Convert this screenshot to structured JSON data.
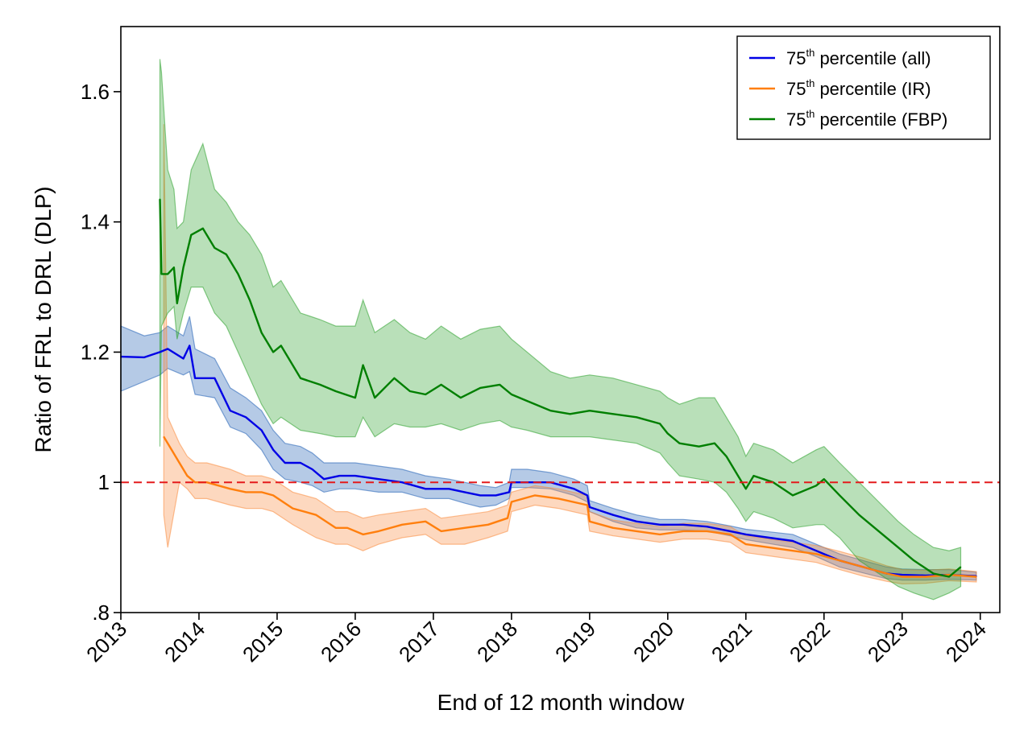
{
  "chart_data": {
    "type": "line",
    "title": "",
    "xlabel": "End of 12 month window",
    "ylabel": "Ratio of FRL to DRL (DLP)",
    "xlim": [
      2013.0,
      2024.25
    ],
    "ylim": [
      0.8,
      1.7
    ],
    "x_ticks": [
      2013,
      2014,
      2015,
      2016,
      2017,
      2018,
      2019,
      2020,
      2021,
      2022,
      2023,
      2024
    ],
    "x_tick_labels": [
      "2013",
      "2014",
      "2015",
      "2016",
      "2017",
      "2018",
      "2019",
      "2020",
      "2021",
      "2022",
      "2023",
      "2024"
    ],
    "y_ticks": [
      0.8,
      1.0,
      1.2,
      1.4,
      1.6
    ],
    "y_tick_labels": [
      ".8",
      "1",
      "1.2",
      "1.4",
      "1.6"
    ],
    "reference_line": {
      "y": 1.0,
      "color": "#e41a1c",
      "style": "dashed"
    },
    "legend": {
      "placement": "top-right",
      "entries": [
        {
          "base": "75",
          "sup": "th",
          "rest": " percentile (all)",
          "color": "#0000e6"
        },
        {
          "base": "75",
          "sup": "th",
          "rest": " percentile (IR)",
          "color": "#ff7f0e"
        },
        {
          "base": "75",
          "sup": "th",
          "rest": " percentile (FBP)",
          "color": "#007f00"
        }
      ]
    },
    "series": [
      {
        "name": "75th percentile (all)",
        "color": "#0000e6",
        "band_color": "#1f5fb4",
        "x": [
          2013.0,
          2013.3,
          2013.5,
          2013.6,
          2013.8,
          2013.88,
          2013.95,
          2014.2,
          2014.4,
          2014.6,
          2014.8,
          2014.95,
          2015.1,
          2015.3,
          2015.45,
          2015.6,
          2015.8,
          2016.0,
          2016.3,
          2016.6,
          2016.9,
          2017.2,
          2017.4,
          2017.6,
          2017.8,
          2017.97,
          2018.0,
          2018.2,
          2018.5,
          2018.8,
          2018.97,
          2019.0,
          2019.3,
          2019.6,
          2019.9,
          2020.2,
          2020.5,
          2020.8,
          2021.0,
          2021.3,
          2021.6,
          2021.9,
          2022.2,
          2022.5,
          2022.8,
          2023.0,
          2023.3,
          2023.6,
          2023.95
        ],
        "y": [
          1.193,
          1.192,
          1.2,
          1.205,
          1.19,
          1.21,
          1.16,
          1.16,
          1.11,
          1.1,
          1.08,
          1.05,
          1.03,
          1.03,
          1.02,
          1.005,
          1.01,
          1.01,
          1.005,
          1.0,
          0.99,
          0.99,
          0.985,
          0.98,
          0.98,
          0.985,
          1.0,
          1.0,
          1.0,
          0.99,
          0.98,
          0.962,
          0.95,
          0.94,
          0.935,
          0.935,
          0.932,
          0.925,
          0.92,
          0.915,
          0.91,
          0.895,
          0.88,
          0.87,
          0.86,
          0.858,
          0.857,
          0.858,
          0.856
        ],
        "lower": [
          1.14,
          1.155,
          1.165,
          1.175,
          1.165,
          1.17,
          1.135,
          1.13,
          1.085,
          1.075,
          1.05,
          1.02,
          1.005,
          1.0,
          0.995,
          0.985,
          0.99,
          0.99,
          0.985,
          0.985,
          0.975,
          0.975,
          0.968,
          0.962,
          0.965,
          0.975,
          0.992,
          0.992,
          0.99,
          0.98,
          0.97,
          0.955,
          0.94,
          0.93,
          0.927,
          0.927,
          0.925,
          0.918,
          0.912,
          0.906,
          0.9,
          0.886,
          0.87,
          0.861,
          0.852,
          0.85,
          0.85,
          0.851,
          0.85
        ],
        "upper": [
          1.24,
          1.225,
          1.23,
          1.24,
          1.225,
          1.255,
          1.205,
          1.19,
          1.145,
          1.13,
          1.11,
          1.08,
          1.06,
          1.055,
          1.045,
          1.03,
          1.03,
          1.03,
          1.025,
          1.02,
          1.01,
          1.005,
          1.0,
          0.995,
          0.992,
          1.0,
          1.02,
          1.02,
          1.015,
          1.005,
          0.995,
          0.972,
          0.96,
          0.95,
          0.943,
          0.943,
          0.94,
          0.933,
          0.928,
          0.924,
          0.92,
          0.905,
          0.89,
          0.88,
          0.87,
          0.867,
          0.866,
          0.866,
          0.862
        ]
      },
      {
        "name": "75th percentile (IR)",
        "color": "#ff7f0e",
        "band_color": "#f98a3c",
        "x": [
          2013.55,
          2013.6,
          2013.75,
          2013.85,
          2013.95,
          2014.1,
          2014.4,
          2014.6,
          2014.8,
          2014.95,
          2015.2,
          2015.5,
          2015.75,
          2015.9,
          2016.1,
          2016.3,
          2016.6,
          2016.9,
          2017.1,
          2017.4,
          2017.7,
          2017.95,
          2018.0,
          2018.3,
          2018.6,
          2018.97,
          2019.0,
          2019.3,
          2019.6,
          2019.9,
          2020.2,
          2020.5,
          2020.8,
          2021.0,
          2021.3,
          2021.6,
          2021.9,
          2022.2,
          2022.5,
          2022.8,
          2023.0,
          2023.3,
          2023.6,
          2023.95
        ],
        "y": [
          1.07,
          1.06,
          1.03,
          1.01,
          1.0,
          1.0,
          0.99,
          0.985,
          0.985,
          0.98,
          0.96,
          0.95,
          0.93,
          0.93,
          0.92,
          0.925,
          0.935,
          0.94,
          0.925,
          0.93,
          0.935,
          0.945,
          0.97,
          0.98,
          0.975,
          0.965,
          0.94,
          0.93,
          0.925,
          0.92,
          0.925,
          0.925,
          0.92,
          0.905,
          0.9,
          0.895,
          0.89,
          0.88,
          0.87,
          0.86,
          0.855,
          0.855,
          0.858,
          0.855
        ],
        "lower": [
          0.95,
          0.9,
          1.0,
          0.99,
          0.975,
          0.975,
          0.965,
          0.96,
          0.96,
          0.955,
          0.935,
          0.915,
          0.905,
          0.905,
          0.895,
          0.905,
          0.915,
          0.92,
          0.905,
          0.905,
          0.915,
          0.925,
          0.955,
          0.965,
          0.96,
          0.95,
          0.925,
          0.918,
          0.913,
          0.908,
          0.913,
          0.913,
          0.908,
          0.892,
          0.887,
          0.882,
          0.877,
          0.866,
          0.856,
          0.848,
          0.844,
          0.845,
          0.849,
          0.847
        ],
        "upper": [
          1.55,
          1.1,
          1.06,
          1.04,
          1.03,
          1.03,
          1.02,
          1.01,
          1.01,
          1.005,
          0.985,
          0.975,
          0.955,
          0.955,
          0.945,
          0.95,
          0.955,
          0.96,
          0.945,
          0.95,
          0.955,
          0.965,
          0.985,
          0.995,
          0.99,
          0.98,
          0.955,
          0.942,
          0.937,
          0.932,
          0.937,
          0.937,
          0.932,
          0.918,
          0.913,
          0.908,
          0.903,
          0.894,
          0.884,
          0.872,
          0.866,
          0.865,
          0.867,
          0.863
        ]
      },
      {
        "name": "75th percentile (FBP)",
        "color": "#007f00",
        "band_color": "#2ca02c",
        "x": [
          2013.5,
          2013.52,
          2013.6,
          2013.68,
          2013.72,
          2013.8,
          2013.9,
          2014.05,
          2014.2,
          2014.35,
          2014.5,
          2014.65,
          2014.8,
          2014.95,
          2015.05,
          2015.3,
          2015.55,
          2015.75,
          2016.0,
          2016.1,
          2016.25,
          2016.5,
          2016.7,
          2016.9,
          2017.1,
          2017.35,
          2017.6,
          2017.85,
          2018.0,
          2018.2,
          2018.5,
          2018.75,
          2019.0,
          2019.3,
          2019.6,
          2019.9,
          2020.0,
          2020.15,
          2020.4,
          2020.6,
          2020.75,
          2020.9,
          2021.0,
          2021.1,
          2021.35,
          2021.6,
          2021.9,
          2022.0,
          2022.2,
          2022.45,
          2022.7,
          2022.95,
          2023.15,
          2023.4,
          2023.6,
          2023.75
        ],
        "y": [
          1.435,
          1.32,
          1.32,
          1.33,
          1.275,
          1.33,
          1.38,
          1.39,
          1.36,
          1.35,
          1.32,
          1.28,
          1.23,
          1.2,
          1.21,
          1.16,
          1.15,
          1.14,
          1.13,
          1.18,
          1.13,
          1.16,
          1.14,
          1.135,
          1.15,
          1.13,
          1.145,
          1.15,
          1.135,
          1.125,
          1.11,
          1.105,
          1.11,
          1.105,
          1.1,
          1.09,
          1.075,
          1.06,
          1.055,
          1.06,
          1.04,
          1.01,
          0.99,
          1.01,
          1.0,
          0.98,
          0.995,
          1.005,
          0.98,
          0.95,
          0.925,
          0.9,
          0.88,
          0.86,
          0.855,
          0.87
        ],
        "lower": [
          1.055,
          1.24,
          1.26,
          1.27,
          1.22,
          1.26,
          1.3,
          1.3,
          1.26,
          1.24,
          1.2,
          1.16,
          1.12,
          1.09,
          1.1,
          1.08,
          1.075,
          1.07,
          1.07,
          1.1,
          1.07,
          1.09,
          1.085,
          1.085,
          1.09,
          1.08,
          1.09,
          1.095,
          1.085,
          1.08,
          1.07,
          1.07,
          1.07,
          1.065,
          1.06,
          1.045,
          1.03,
          1.01,
          1.005,
          1.0,
          0.985,
          0.96,
          0.94,
          0.955,
          0.945,
          0.93,
          0.935,
          0.935,
          0.915,
          0.88,
          0.86,
          0.84,
          0.83,
          0.82,
          0.83,
          0.84
        ],
        "upper": [
          1.65,
          1.63,
          1.48,
          1.45,
          1.39,
          1.4,
          1.48,
          1.52,
          1.45,
          1.43,
          1.4,
          1.38,
          1.35,
          1.3,
          1.31,
          1.26,
          1.25,
          1.24,
          1.24,
          1.28,
          1.23,
          1.25,
          1.23,
          1.22,
          1.24,
          1.22,
          1.235,
          1.24,
          1.22,
          1.2,
          1.17,
          1.16,
          1.165,
          1.16,
          1.15,
          1.14,
          1.13,
          1.12,
          1.13,
          1.13,
          1.1,
          1.07,
          1.04,
          1.06,
          1.05,
          1.03,
          1.05,
          1.055,
          1.03,
          1.0,
          0.97,
          0.94,
          0.92,
          0.9,
          0.895,
          0.9
        ]
      }
    ]
  }
}
